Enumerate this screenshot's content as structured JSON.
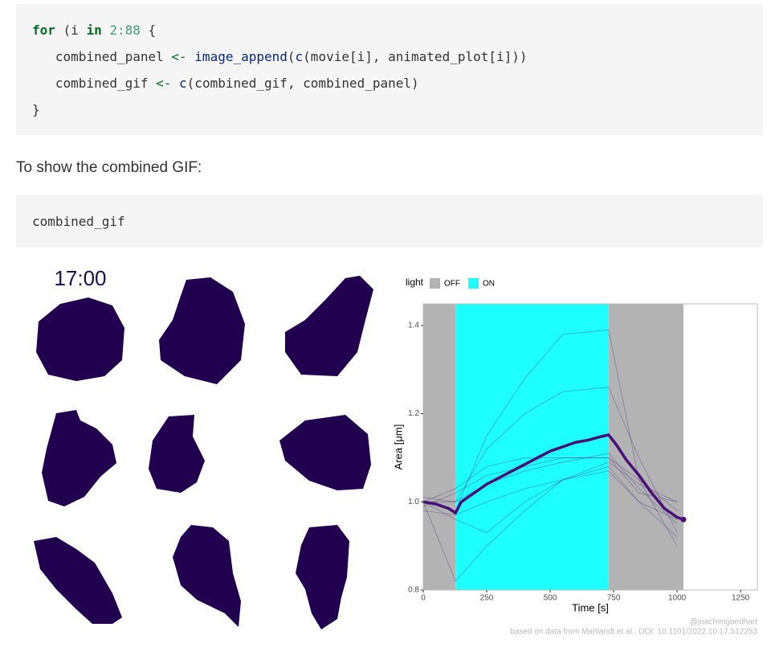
{
  "code_blocks": [
    {
      "lines": [
        [
          {
            "text": "for",
            "color": "#007020",
            "bold": true
          },
          {
            "text": " (i "
          },
          {
            "text": "in",
            "color": "#007020",
            "bold": true
          },
          {
            "text": " "
          },
          {
            "text": "2:88",
            "color": "#40a070"
          },
          {
            "text": " {"
          }
        ],
        [
          {
            "text": "   combined_panel "
          },
          {
            "text": "<-",
            "color": "#007020"
          },
          {
            "text": " "
          },
          {
            "text": "image_append",
            "color": "#06287e"
          },
          {
            "text": "("
          },
          {
            "text": "c",
            "color": "#06287e"
          },
          {
            "text": "(movie[i], animated_plot[i]))"
          }
        ],
        [
          {
            "text": "   combined_gif "
          },
          {
            "text": "<-",
            "color": "#007020"
          },
          {
            "text": " "
          },
          {
            "text": "c",
            "color": "#06287e"
          },
          {
            "text": "(combined_gif, combined_panel)"
          }
        ],
        [
          {
            "text": "}"
          }
        ]
      ]
    },
    {
      "lines": [
        [
          {
            "text": "combined_gif"
          }
        ]
      ]
    }
  ],
  "paragraph": "To show the combined GIF:",
  "figure": {
    "time_label": "17:00",
    "chart": {
      "type": "line",
      "x_label": "Time [s]",
      "y_label": "Area [μm]",
      "xlim": [
        0,
        1316
      ],
      "ylim": [
        0.8,
        1.449
      ],
      "xticks": [
        0,
        250,
        500,
        750,
        1000,
        1250
      ],
      "yticks": [
        0.8,
        {
          "value": 1,
          "label": "1.0"
        },
        1.2,
        1.4
      ],
      "legend": {
        "title": "light",
        "items": [
          {
            "label": "OFF",
            "color": "#b3b3b3"
          },
          {
            "label": "ON",
            "color": "#1effff"
          }
        ]
      },
      "bands": [
        {
          "start": 0,
          "end": 127,
          "color": "#b3b3b3"
        },
        {
          "start": 127,
          "end": 730,
          "color": "#1effff"
        },
        {
          "start": 730,
          "end": 1025,
          "color": "#b3b3b3"
        }
      ],
      "series": [
        {
          "color": "#4b3a80",
          "width": 0.8,
          "x": [
            0,
            127,
            250,
            400,
            550,
            730,
            850,
            1000
          ],
          "values": [
            1.0,
            0.98,
            1.15,
            1.28,
            1.38,
            1.39,
            1.05,
            0.9
          ]
        },
        {
          "color": "#4b3a80",
          "width": 0.8,
          "x": [
            0,
            127,
            250,
            400,
            550,
            730,
            850,
            1000
          ],
          "values": [
            1.0,
            1.0,
            1.12,
            1.2,
            1.25,
            1.26,
            1.1,
            0.93
          ]
        },
        {
          "color": "#4b3a80",
          "width": 0.8,
          "x": [
            0,
            127,
            250,
            400,
            550,
            730,
            850,
            1000
          ],
          "values": [
            1.0,
            0.82,
            0.9,
            0.98,
            1.05,
            1.08,
            1.0,
            0.96
          ]
        },
        {
          "color": "#4b3a80",
          "width": 0.8,
          "x": [
            0,
            127,
            250,
            400,
            550,
            730,
            850,
            1000
          ],
          "values": [
            0.99,
            1.02,
            1.06,
            1.08,
            1.1,
            1.1,
            1.05,
            0.98
          ]
        },
        {
          "color": "#4b3a80",
          "width": 0.8,
          "x": [
            0,
            127,
            250,
            400,
            550,
            730,
            850,
            1000
          ],
          "values": [
            1.01,
            1.0,
            1.04,
            1.07,
            1.09,
            1.11,
            1.03,
            0.95
          ]
        },
        {
          "color": "#4b3a80",
          "width": 0.8,
          "x": [
            0,
            127,
            250,
            400,
            550,
            730,
            850,
            1000
          ],
          "values": [
            0.98,
            0.97,
            1.0,
            1.03,
            1.05,
            1.07,
            1.0,
            0.92
          ]
        },
        {
          "color": "#4b3a80",
          "width": 0.8,
          "x": [
            0,
            127,
            250,
            400,
            550,
            730,
            850,
            1000
          ],
          "values": [
            1.0,
            1.03,
            1.08,
            1.1,
            1.1,
            1.1,
            1.02,
            1.0
          ]
        },
        {
          "color": "#4b3a80",
          "width": 0.8,
          "x": [
            0,
            127,
            250,
            400,
            550,
            730,
            850,
            1000
          ],
          "values": [
            1.0,
            0.96,
            0.93,
            1.0,
            1.05,
            1.09,
            1.04,
            1.0
          ]
        },
        {
          "color": "#4a0e78",
          "width": 3.5,
          "x": [
            0,
            50,
            100,
            127,
            150,
            200,
            250,
            300,
            350,
            400,
            450,
            500,
            550,
            600,
            650,
            700,
            730,
            760,
            800,
            850,
            900,
            950,
            1000,
            1025
          ],
          "values": [
            1.0,
            0.995,
            0.985,
            0.975,
            1.0,
            1.02,
            1.04,
            1.055,
            1.07,
            1.085,
            1.1,
            1.115,
            1.125,
            1.135,
            1.14,
            1.148,
            1.152,
            1.13,
            1.095,
            1.06,
            1.02,
            0.985,
            0.965,
            0.96
          ]
        }
      ],
      "credits": [
        "@joachimgoedhart",
        "based on data from Mahlandt et al., DOI: 10.1101/2022.10.17.512253"
      ]
    }
  }
}
